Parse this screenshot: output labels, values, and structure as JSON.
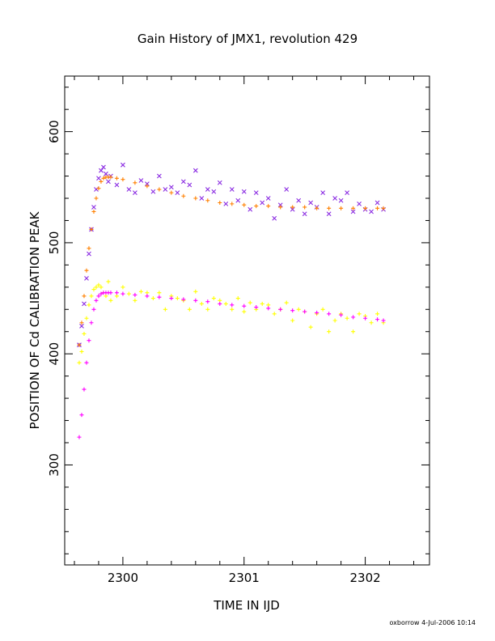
{
  "chart_data": {
    "type": "scatter",
    "title": "Gain History of JMX1, revolution 429",
    "xlabel": "TIME IN IJD",
    "ylabel": "POSITION OF Cd CALIBRATION PEAK",
    "xlim": [
      2299.52,
      2302.53
    ],
    "ylim": [
      210,
      650
    ],
    "x_ticks": [
      "2300",
      "2301",
      "2302"
    ],
    "x_tick_values": [
      2300,
      2301,
      2302
    ],
    "y_ticks": [
      "300",
      "400",
      "500",
      "600"
    ],
    "y_tick_values": [
      300,
      400,
      500,
      600
    ],
    "grid": false,
    "footer": "oxborrow  4-Jul-2006 10:14",
    "series": [
      {
        "marker": "x",
        "color": "#8a2be2",
        "x": [
          2299.64,
          2299.66,
          2299.68,
          2299.7,
          2299.72,
          2299.74,
          2299.76,
          2299.78,
          2299.8,
          2299.82,
          2299.84,
          2299.86,
          2299.88,
          2299.9,
          2299.95,
          2300.0,
          2300.05,
          2300.1,
          2300.15,
          2300.2,
          2300.25,
          2300.3,
          2300.35,
          2300.4,
          2300.45,
          2300.5,
          2300.55,
          2300.6,
          2300.65,
          2300.7,
          2300.75,
          2300.8,
          2300.85,
          2300.9,
          2300.95,
          2301.0,
          2301.05,
          2301.1,
          2301.15,
          2301.2,
          2301.25,
          2301.3,
          2301.35,
          2301.4,
          2301.45,
          2301.5,
          2301.55,
          2301.6,
          2301.65,
          2301.7,
          2301.75,
          2301.8,
          2301.85,
          2301.9,
          2301.95,
          2302.0,
          2302.05,
          2302.1,
          2302.15
        ],
        "y": [
          408,
          425,
          445,
          468,
          490,
          512,
          532,
          548,
          558,
          565,
          568,
          562,
          555,
          560,
          552,
          570,
          548,
          545,
          556,
          553,
          546,
          560,
          548,
          550,
          545,
          555,
          552,
          565,
          540,
          548,
          546,
          554,
          535,
          548,
          538,
          546,
          530,
          545,
          536,
          540,
          522,
          534,
          548,
          530,
          538,
          526,
          536,
          532,
          545,
          526,
          540,
          538,
          545,
          528,
          535,
          530,
          528,
          536,
          530
        ]
      },
      {
        "marker": "+",
        "color": "#ffff00",
        "x": [
          2299.64,
          2299.66,
          2299.68,
          2299.7,
          2299.72,
          2299.74,
          2299.76,
          2299.78,
          2299.8,
          2299.82,
          2299.84,
          2299.86,
          2299.88,
          2299.9,
          2299.95,
          2300.0,
          2300.05,
          2300.1,
          2300.15,
          2300.2,
          2300.25,
          2300.3,
          2300.35,
          2300.4,
          2300.45,
          2300.5,
          2300.55,
          2300.6,
          2300.65,
          2300.7,
          2300.75,
          2300.8,
          2300.85,
          2300.9,
          2300.95,
          2301.0,
          2301.05,
          2301.1,
          2301.15,
          2301.2,
          2301.25,
          2301.3,
          2301.35,
          2301.4,
          2301.45,
          2301.5,
          2301.55,
          2301.6,
          2301.65,
          2301.7,
          2301.75,
          2301.8,
          2301.85,
          2301.9,
          2301.95,
          2302.0,
          2302.05,
          2302.1,
          2302.15
        ],
        "y": [
          392,
          402,
          418,
          432,
          444,
          452,
          458,
          460,
          462,
          460,
          455,
          452,
          465,
          448,
          452,
          460,
          454,
          448,
          456,
          455,
          450,
          455,
          440,
          452,
          450,
          448,
          440,
          456,
          445,
          440,
          450,
          448,
          445,
          440,
          450,
          438,
          446,
          440,
          445,
          444,
          436,
          440,
          446,
          430,
          440,
          438,
          424,
          436,
          440,
          420,
          430,
          436,
          432,
          420,
          436,
          434,
          428,
          436,
          428
        ]
      },
      {
        "marker": "+",
        "color": "#ff8000",
        "x": [
          2299.64,
          2299.66,
          2299.68,
          2299.7,
          2299.72,
          2299.74,
          2299.76,
          2299.78,
          2299.8,
          2299.82,
          2299.84,
          2299.86,
          2299.88,
          2299.9,
          2299.95,
          2300.0,
          2300.1,
          2300.2,
          2300.3,
          2300.4,
          2300.5,
          2300.6,
          2300.7,
          2300.8,
          2300.9,
          2301.0,
          2301.1,
          2301.2,
          2301.3,
          2301.4,
          2301.5,
          2301.6,
          2301.7,
          2301.8,
          2301.9,
          2302.0,
          2302.1,
          2302.15
        ],
        "y": [
          408,
          428,
          452,
          475,
          495,
          512,
          528,
          540,
          549,
          555,
          558,
          559,
          559,
          559,
          558,
          557,
          554,
          551,
          548,
          545,
          542,
          540,
          538,
          536,
          535,
          534,
          533,
          533,
          532,
          532,
          532,
          531,
          531,
          531,
          531,
          531,
          531,
          531
        ]
      },
      {
        "marker": "+",
        "color": "#ff00ff",
        "x": [
          2299.64,
          2299.66,
          2299.68,
          2299.7,
          2299.72,
          2299.74,
          2299.76,
          2299.78,
          2299.8,
          2299.82,
          2299.84,
          2299.86,
          2299.88,
          2299.9,
          2299.95,
          2300.0,
          2300.1,
          2300.2,
          2300.3,
          2300.4,
          2300.5,
          2300.6,
          2300.7,
          2300.8,
          2300.9,
          2301.0,
          2301.1,
          2301.2,
          2301.3,
          2301.4,
          2301.5,
          2301.6,
          2301.7,
          2301.8,
          2301.9,
          2302.0,
          2302.1,
          2302.15
        ],
        "y": [
          325,
          345,
          368,
          392,
          412,
          428,
          440,
          448,
          452,
          454,
          455,
          455,
          455,
          455,
          455,
          454,
          453,
          452,
          451,
          450,
          449,
          448,
          447,
          445,
          444,
          443,
          442,
          441,
          440,
          439,
          438,
          437,
          436,
          435,
          433,
          432,
          431,
          430
        ]
      }
    ]
  }
}
